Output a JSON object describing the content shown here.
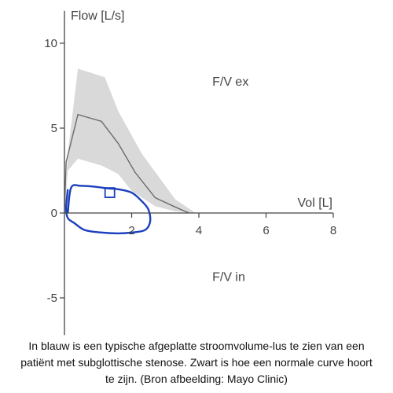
{
  "chart_data": {
    "type": "line",
    "xlabel": "Vol [L]",
    "ylabel": "Flow [L/s]",
    "xlim": [
      0,
      8
    ],
    "ylim": [
      -7,
      12
    ],
    "x_ticks": [
      2,
      4,
      6,
      8
    ],
    "y_ticks": [
      -5,
      0,
      5,
      10
    ],
    "grid": false,
    "annotations": [
      {
        "text": "F/V ex",
        "x": 4.4,
        "y": 7.5
      },
      {
        "text": "F/V in",
        "x": 4.4,
        "y": -4.0
      }
    ],
    "colors": {
      "normal_curve": "#6b6b6b",
      "normal_band": "#d9d9d9",
      "patient_loop": "#1a3fbf",
      "axes": "#444444"
    },
    "series": [
      {
        "x": [
          0,
          0.05,
          0.4,
          1.1,
          1.6,
          2.1,
          2.7,
          3.3,
          3.7
        ],
        "y": [
          0,
          3.0,
          5.8,
          5.4,
          4.1,
          2.4,
          0.9,
          0.35,
          0
        ]
      },
      {
        "x": [
          0,
          0.1,
          0.4,
          1.2,
          1.6,
          2.3,
          3.3,
          3.9,
          3.3,
          2.7,
          2.0,
          1.6,
          1.1,
          0.4,
          0.1,
          0
        ],
        "y": [
          0,
          3.5,
          8.5,
          8.0,
          6.0,
          3.5,
          0.8,
          0,
          0.1,
          0.4,
          1.3,
          2.3,
          2.8,
          3.2,
          2.5,
          0
        ]
      },
      {
        "x": [
          0.1,
          0.2,
          0.5,
          0.9,
          1.3,
          1.6,
          2.0,
          2.3,
          2.5,
          2.55,
          2.4,
          2.0,
          1.6,
          1.1,
          0.6,
          0.3,
          0.1,
          0.05,
          0.1
        ],
        "y": [
          0.0,
          1.5,
          1.6,
          1.55,
          1.45,
          1.4,
          1.2,
          0.7,
          0.2,
          -0.5,
          -1.0,
          -1.15,
          -1.2,
          -1.15,
          -1.0,
          -0.6,
          -0.3,
          0.3,
          1.4
        ]
      }
    ],
    "marker": {
      "x": 1.35,
      "y": 1.2
    }
  },
  "caption": "In blauw is een typische afgeplatte stroomvolume-lus te zien van een patiënt met subglottische stenose. Zwart is hoe een normale curve hoort te zijn. (Bron afbeelding: Mayo Clinic)"
}
